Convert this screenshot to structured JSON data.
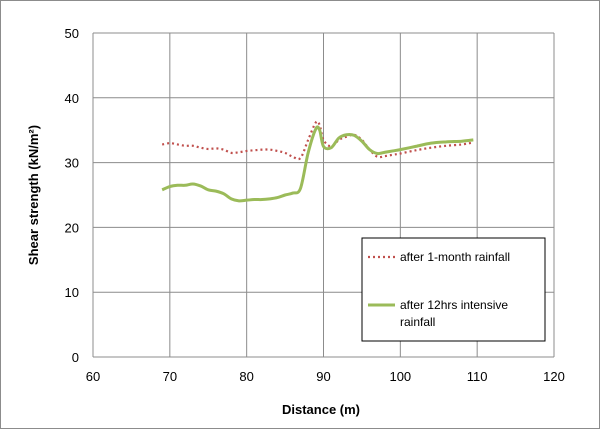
{
  "chart_data": {
    "type": "line",
    "xlabel": "Distance (m)",
    "ylabel": "Shear strength (kN/m²)",
    "xlim": [
      60,
      120
    ],
    "ylim": [
      0,
      50
    ],
    "x_ticks": [
      60,
      70,
      80,
      90,
      100,
      110,
      120
    ],
    "y_ticks": [
      0,
      10,
      20,
      30,
      40,
      50
    ],
    "grid": true,
    "legend_position": "lower-right",
    "series": [
      {
        "name": "after 1-month rainfall",
        "color": "#c0504d",
        "style": "dotted",
        "x": [
          69,
          70,
          71,
          72,
          73,
          74,
          75,
          76,
          77,
          78,
          79,
          80,
          81,
          82,
          83,
          84,
          85,
          86,
          87,
          88,
          89,
          89.5,
          90,
          91,
          92,
          93,
          94,
          95,
          96,
          97,
          98,
          99,
          100,
          102,
          104,
          106,
          108,
          109.5
        ],
        "y": [
          32.8,
          33.0,
          32.8,
          32.6,
          32.6,
          32.3,
          32.1,
          32.2,
          32.0,
          31.5,
          31.6,
          31.8,
          31.9,
          32.0,
          32.0,
          31.8,
          31.5,
          30.9,
          30.7,
          33.5,
          36.2,
          35.8,
          33.5,
          32.5,
          33.5,
          34.0,
          34.3,
          33.5,
          32.0,
          30.9,
          31.0,
          31.2,
          31.4,
          31.9,
          32.3,
          32.6,
          32.8,
          33.1
        ]
      },
      {
        "name": "after 12hrs intensive rainfall",
        "color": "#9bbb59",
        "style": "solid",
        "x": [
          69,
          70,
          71,
          72,
          73,
          74,
          75,
          76,
          77,
          78,
          79,
          80,
          81,
          82,
          83,
          84,
          85,
          86,
          87,
          88,
          89,
          89.5,
          90,
          91,
          92,
          93,
          94,
          95,
          96,
          97,
          98,
          99,
          100,
          102,
          104,
          106,
          108,
          109.5
        ],
        "y": [
          25.8,
          26.3,
          26.5,
          26.5,
          26.7,
          26.4,
          25.8,
          25.6,
          25.2,
          24.4,
          24.1,
          24.2,
          24.3,
          24.3,
          24.4,
          24.6,
          25.0,
          25.3,
          26.0,
          31.5,
          35.2,
          35.0,
          32.5,
          32.3,
          33.8,
          34.3,
          34.2,
          33.3,
          32.0,
          31.4,
          31.6,
          31.8,
          32.0,
          32.5,
          33.0,
          33.2,
          33.3,
          33.5
        ]
      }
    ]
  }
}
